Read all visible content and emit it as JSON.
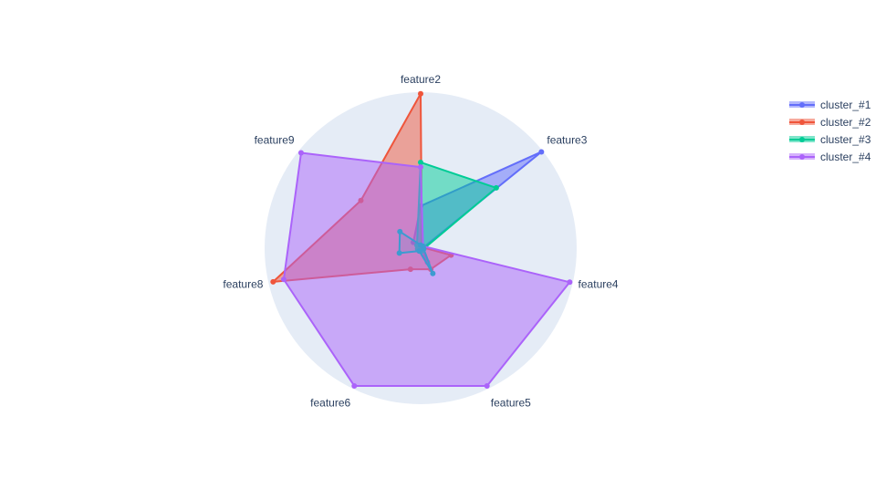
{
  "chart_data": {
    "type": "radar",
    "axes": [
      "feature2",
      "feature3",
      "feature4",
      "feature5",
      "feature6",
      "feature8",
      "feature9"
    ],
    "range": [
      0,
      1
    ],
    "grid": false,
    "legend_position": "top-right",
    "series": [
      {
        "name": "cluster_#1",
        "color": "#636efa",
        "values": [
          0.27,
          0.99,
          0.01,
          0.1,
          0.02,
          0.01,
          0.06
        ]
      },
      {
        "name": "cluster_#2",
        "color": "#ef553b",
        "values": [
          0.99,
          0.01,
          0.2,
          0.15,
          0.15,
          0.97,
          0.49
        ]
      },
      {
        "name": "cluster_#3",
        "color": "#00cc96",
        "values": [
          0.55,
          0.62,
          0.02,
          0.02,
          0.02,
          0.02,
          0.03
        ]
      },
      {
        "name": "cluster_#4",
        "color": "#ab63fa",
        "values": [
          0.52,
          0.02,
          0.98,
          0.98,
          0.98,
          0.9,
          0.98
        ]
      }
    ],
    "highlight_trace": {
      "color": "#3d9bd0",
      "values": [
        0.02,
        0.02,
        0.02,
        0.18,
        0.02,
        0.14,
        0.17
      ]
    }
  }
}
